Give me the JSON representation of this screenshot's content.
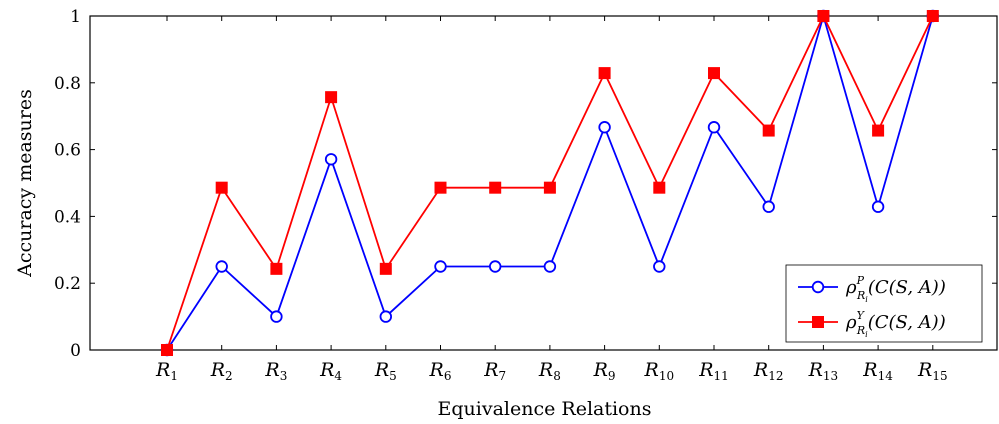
{
  "chart_data": {
    "type": "line",
    "xlabel": "Equivalence Relations",
    "ylabel": "Accuracy measures",
    "ylim": [
      0,
      1
    ],
    "yticks": [
      "0",
      "0.2",
      "0.4",
      "0.6",
      "0.8",
      "1"
    ],
    "grid": false,
    "legend_position": "bottom-right",
    "categories": [
      {
        "base": "R",
        "sub": "1"
      },
      {
        "base": "R",
        "sub": "2"
      },
      {
        "base": "R",
        "sub": "3"
      },
      {
        "base": "R",
        "sub": "4"
      },
      {
        "base": "R",
        "sub": "5"
      },
      {
        "base": "R",
        "sub": "6"
      },
      {
        "base": "R",
        "sub": "7"
      },
      {
        "base": "R",
        "sub": "8"
      },
      {
        "base": "R",
        "sub": "9"
      },
      {
        "base": "R",
        "sub": "10"
      },
      {
        "base": "R",
        "sub": "11"
      },
      {
        "base": "R",
        "sub": "12"
      },
      {
        "base": "R",
        "sub": "13"
      },
      {
        "base": "R",
        "sub": "14"
      },
      {
        "base": "R",
        "sub": "15"
      }
    ],
    "series": [
      {
        "name": "ρ^P_{R_i}(C(S,A))",
        "legend": {
          "sup": "P",
          "suffix": "(C(S, A))"
        },
        "color": "#0000ff",
        "marker": "circle",
        "values": [
          0,
          0.25,
          0.1,
          0.571,
          0.1,
          0.25,
          0.25,
          0.25,
          0.667,
          0.25,
          0.667,
          0.429,
          1,
          0.429,
          1
        ]
      },
      {
        "name": "ρ^Y_{R_i}(C(S,A))",
        "legend": {
          "sup": "Y",
          "suffix": "(C(S, A))"
        },
        "color": "#ff0000",
        "marker": "square",
        "values": [
          0,
          0.486,
          0.243,
          0.757,
          0.243,
          0.486,
          0.486,
          0.486,
          0.829,
          0.486,
          0.829,
          0.657,
          1,
          0.657,
          1
        ]
      }
    ]
  }
}
